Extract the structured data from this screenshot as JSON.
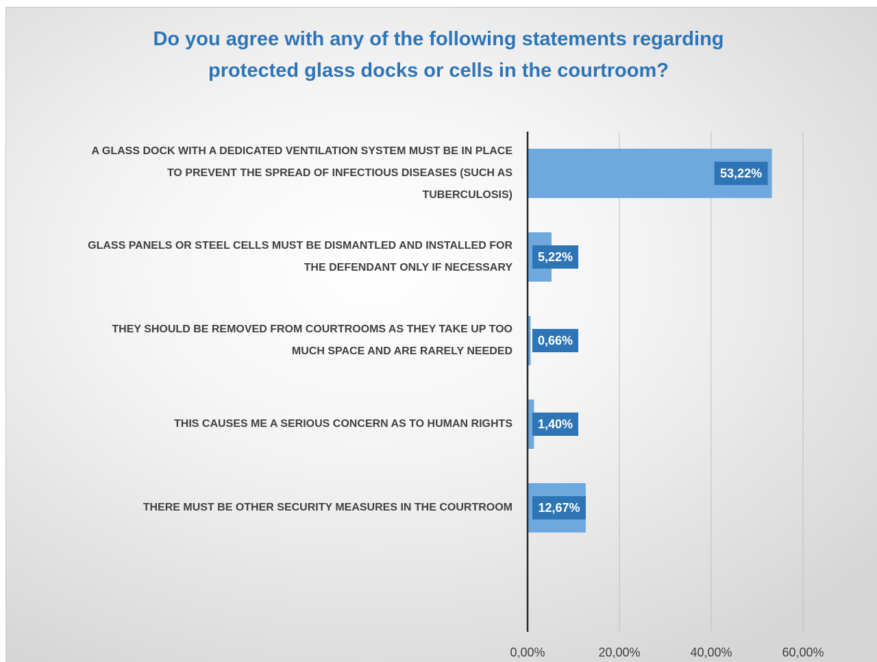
{
  "chart_data": {
    "type": "bar",
    "orientation": "horizontal",
    "title": "Do you agree with any of the following statements regarding protected glass docks or cells in the courtroom?",
    "categories": [
      "A GLASS DOCK WITH A DEDICATED VENTILATION SYSTEM MUST BE IN PLACE TO PREVENT THE SPREAD OF INFECTIOUS DISEASES (SUCH AS TUBERCULOSIS)",
      "GLASS PANELS OR STEEL CELLS MUST BE DISMANTLED AND INSTALLED FOR THE DEFENDANT ONLY IF NECESSARY",
      "THEY SHOULD BE REMOVED FROM COURTROOMS AS THEY TAKE UP TOO MUCH SPACE AND ARE RARELY NEEDED",
      "THIS CAUSES ME A SERIOUS CONCERN AS TO HUMAN RIGHTS",
      "THERE MUST BE OTHER SECURITY MEASURES IN THE COURTROOM"
    ],
    "values": [
      53.22,
      5.22,
      0.66,
      1.4,
      12.67
    ],
    "value_labels": [
      "53,22%",
      "5,22%",
      "0,66%",
      "1,40%",
      "12,67%"
    ],
    "color": "#6fa8dc",
    "label_color": "#2e75b6",
    "xlim": [
      0,
      60
    ],
    "xticks": [
      {
        "value": 0,
        "label": "0,00%"
      },
      {
        "value": 20,
        "label": "20,00%"
      },
      {
        "value": 40,
        "label": "40,00%"
      },
      {
        "value": 60,
        "label": "60,00%"
      }
    ],
    "grid": true
  }
}
